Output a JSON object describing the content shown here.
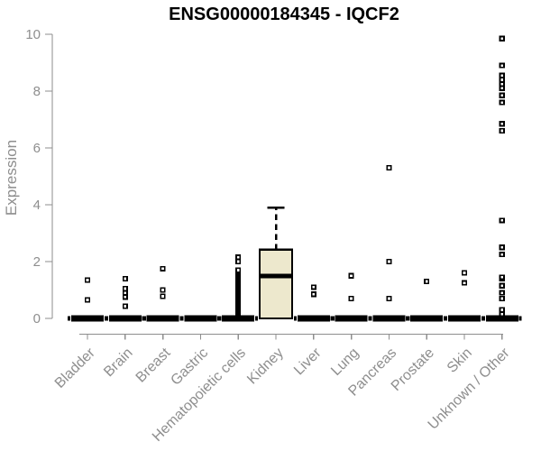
{
  "chart_data": {
    "type": "boxplot",
    "title": "ENSG00000184345 - IQCF2",
    "xlabel": "",
    "ylabel": "Expression",
    "ylim": [
      0,
      10
    ],
    "yticks": [
      0,
      2,
      4,
      6,
      8,
      10
    ],
    "grid": false,
    "legend": false,
    "categories": [
      "Bladder",
      "Brain",
      "Breast",
      "Gastric",
      "Hematopoietic cells",
      "Kidney",
      "Liver",
      "Lung",
      "Pancreas",
      "Prostate",
      "Skin",
      "Unknown / Other"
    ],
    "boxes": [
      {
        "category": "Bladder",
        "q1": 0,
        "median": 0,
        "q3": 0,
        "whisker_low": 0,
        "whisker_high": 0,
        "outliers": [
          0.65,
          1.35
        ]
      },
      {
        "category": "Brain",
        "q1": 0,
        "median": 0,
        "q3": 0,
        "whisker_low": 0,
        "whisker_high": 0,
        "outliers": [
          0.43,
          0.75,
          0.9,
          1.05,
          1.4
        ]
      },
      {
        "category": "Breast",
        "q1": 0,
        "median": 0,
        "q3": 0,
        "whisker_low": 0,
        "whisker_high": 0,
        "outliers": [
          0.78,
          1.0,
          1.75
        ]
      },
      {
        "category": "Gastric",
        "q1": 0,
        "median": 0,
        "q3": 0,
        "whisker_low": 0,
        "whisker_high": 0,
        "outliers": []
      },
      {
        "category": "Hematopoietic cells",
        "q1": 0,
        "median": 0,
        "q3": 0,
        "whisker_low": 0,
        "whisker_high": 0,
        "outliers": [
          0.15,
          0.2,
          0.25,
          0.3,
          0.35,
          0.4,
          0.45,
          0.5,
          0.55,
          0.6,
          0.65,
          0.7,
          0.75,
          0.8,
          0.85,
          0.9,
          0.95,
          1.0,
          1.05,
          1.1,
          1.15,
          1.2,
          1.25,
          1.3,
          1.35,
          1.4,
          1.45,
          1.5,
          1.55,
          1.6,
          1.65,
          1.7,
          2.0,
          2.15
        ]
      },
      {
        "category": "Kidney",
        "q1": 0,
        "median": 1.5,
        "q3": 2.42,
        "whisker_low": 0,
        "whisker_high": 3.9,
        "outliers": []
      },
      {
        "category": "Liver",
        "q1": 0,
        "median": 0,
        "q3": 0,
        "whisker_low": 0,
        "whisker_high": 0,
        "outliers": [
          0.85,
          1.1
        ]
      },
      {
        "category": "Lung",
        "q1": 0,
        "median": 0,
        "q3": 0,
        "whisker_low": 0,
        "whisker_high": 0,
        "outliers": [
          0.7,
          1.5
        ]
      },
      {
        "category": "Pancreas",
        "q1": 0,
        "median": 0,
        "q3": 0,
        "whisker_low": 0,
        "whisker_high": 0,
        "outliers": [
          0.7,
          2.0,
          5.3
        ]
      },
      {
        "category": "Prostate",
        "q1": 0,
        "median": 0,
        "q3": 0,
        "whisker_low": 0,
        "whisker_high": 0,
        "outliers": [
          1.3
        ]
      },
      {
        "category": "Skin",
        "q1": 0,
        "median": 0,
        "q3": 0,
        "whisker_low": 0,
        "whisker_high": 0,
        "outliers": [
          1.25,
          1.6
        ]
      },
      {
        "category": "Unknown / Other",
        "q1": 0,
        "median": 0,
        "q3": 0,
        "whisker_low": 0,
        "whisker_high": 0,
        "outliers": [
          0.15,
          0.3,
          0.7,
          0.9,
          1.15,
          1.4,
          1.45,
          2.25,
          2.5,
          3.45,
          6.6,
          6.85,
          7.6,
          7.85,
          8.1,
          8.25,
          8.4,
          8.55,
          8.9,
          9.85
        ]
      }
    ],
    "colors": {
      "background": "#ffffff",
      "box_fill": "#ede8cd",
      "box_stroke": "#000000",
      "median": "#000000",
      "zero_bar": "#000000",
      "outlier_fill": "#ffffff",
      "outlier_stroke": "#000000",
      "axis_line": "#8e8e8e",
      "axis_text": "#8e8e8e",
      "title_text": "#000000"
    }
  }
}
